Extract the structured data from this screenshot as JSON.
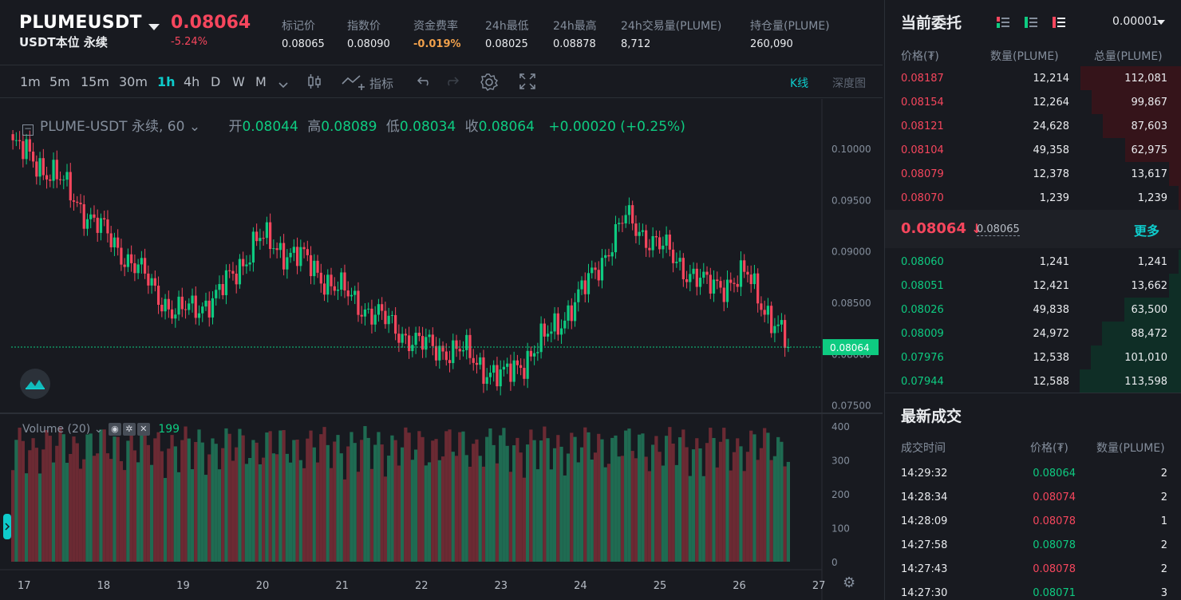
{
  "header": {
    "symbol": "PLUMEUSDT",
    "subtitle": "USDT本位 永续",
    "last_price": "0.08064",
    "change_pct": "-5.24%",
    "stats": [
      {
        "label": "标记价",
        "value": "0.08065",
        "highlight": false
      },
      {
        "label": "指数价",
        "value": "0.08090",
        "highlight": false
      },
      {
        "label": "资金费率",
        "value": "-0.019%",
        "highlight": true
      },
      {
        "label": "24h最低",
        "value": "0.08025",
        "highlight": false
      },
      {
        "label": "24h最高",
        "value": "0.08878",
        "highlight": false
      },
      {
        "label": "24h交易量(PLUME)",
        "value": "8,712",
        "highlight": false
      },
      {
        "label": "持仓量(PLUME)",
        "value": "260,090",
        "highlight": false
      }
    ]
  },
  "toolbar": {
    "timeframes": [
      "1m",
      "5m",
      "15m",
      "30m",
      "1h",
      "4h",
      "D",
      "W",
      "M"
    ],
    "active_timeframe": "1h",
    "indicator_label": "指标",
    "kline_label": "K线",
    "depth_label": "深度图"
  },
  "chart": {
    "legend": {
      "name": "PLUME-USDT 永续, 60",
      "open_label": "开",
      "open": "0.08044",
      "high_label": "高",
      "high": "0.08089",
      "low_label": "低",
      "low": "0.08034",
      "close_label": "收",
      "close": "0.08064",
      "change": "+0.00020 (+0.25%)"
    },
    "volume_legend": {
      "name": "Volume (20)",
      "value": "199"
    },
    "price_axis": [
      "0.10000",
      "0.09500",
      "0.09000",
      "0.08500",
      "0.08000",
      "0.07500"
    ],
    "current_price_tag": "0.08064",
    "volume_axis": [
      "400",
      "300",
      "200",
      "100",
      "0"
    ],
    "date_axis": [
      "17",
      "18",
      "19",
      "20",
      "21",
      "22",
      "23",
      "24",
      "25",
      "26",
      "27"
    ],
    "colors": {
      "up": "#0ecb81",
      "down": "#f6465d",
      "accent": "#0ecbcb"
    }
  },
  "chart_data": {
    "type": "line",
    "title": "PLUME-USDT 永续, 60",
    "xlabel": "",
    "ylabel": "",
    "x": [
      "17",
      "17.5",
      "18",
      "18.5",
      "19",
      "19.5",
      "20",
      "20.5",
      "21",
      "21.5",
      "22",
      "22.5",
      "23",
      "23.5",
      "24",
      "24.5",
      "25",
      "25.5",
      "26",
      "26.5"
    ],
    "series": [
      {
        "values": [
          0.1003,
          0.0975,
          0.0928,
          0.0885,
          0.0838,
          0.0855,
          0.0912,
          0.0895,
          0.0862,
          0.0835,
          0.0808,
          0.0802,
          0.0775,
          0.0812,
          0.0862,
          0.0932,
          0.09,
          0.0865,
          0.0875,
          0.08064
        ]
      }
    ],
    "ylim": [
      0.0745,
      0.1025
    ]
  },
  "orderbook": {
    "title": "当前委托",
    "precision": "0.00001",
    "headers": {
      "price": "价格(₮)",
      "qty": "数量(PLUME)",
      "total": "总量(PLUME)"
    },
    "asks": [
      {
        "price": "0.08187",
        "qty": "12,214",
        "total": "112,081",
        "depth": 0.99
      },
      {
        "price": "0.08154",
        "qty": "12,264",
        "total": "99,867",
        "depth": 0.88
      },
      {
        "price": "0.08121",
        "qty": "24,628",
        "total": "87,603",
        "depth": 0.77
      },
      {
        "price": "0.08104",
        "qty": "49,358",
        "total": "62,975",
        "depth": 0.55
      },
      {
        "price": "0.08079",
        "qty": "12,378",
        "total": "13,617",
        "depth": 0.12
      },
      {
        "price": "0.08070",
        "qty": "1,239",
        "total": "1,239",
        "depth": 0.02
      }
    ],
    "mid": {
      "price": "0.08064",
      "arrow": "↓",
      "mark": "0.08065",
      "more": "更多"
    },
    "bids": [
      {
        "price": "0.08060",
        "qty": "1,241",
        "total": "1,241",
        "depth": 0.02
      },
      {
        "price": "0.08051",
        "qty": "12,421",
        "total": "13,662",
        "depth": 0.12
      },
      {
        "price": "0.08026",
        "qty": "49,838",
        "total": "63,500",
        "depth": 0.56
      },
      {
        "price": "0.08009",
        "qty": "24,972",
        "total": "88,472",
        "depth": 0.78
      },
      {
        "price": "0.07976",
        "qty": "12,538",
        "total": "101,010",
        "depth": 0.89
      },
      {
        "price": "0.07944",
        "qty": "12,588",
        "total": "113,598",
        "depth": 1.0
      }
    ]
  },
  "trades": {
    "title": "最新成交",
    "headers": {
      "time": "成交时间",
      "price": "价格(₮)",
      "qty": "数量(PLUME)"
    },
    "rows": [
      {
        "time": "14:29:32",
        "price": "0.08064",
        "qty": "2",
        "side": "buy"
      },
      {
        "time": "14:28:34",
        "price": "0.08074",
        "qty": "2",
        "side": "sell"
      },
      {
        "time": "14:28:09",
        "price": "0.08078",
        "qty": "1",
        "side": "sell"
      },
      {
        "time": "14:27:58",
        "price": "0.08078",
        "qty": "2",
        "side": "buy"
      },
      {
        "time": "14:27:43",
        "price": "0.08078",
        "qty": "2",
        "side": "sell"
      },
      {
        "time": "14:27:30",
        "price": "0.08071",
        "qty": "3",
        "side": "buy"
      }
    ]
  }
}
